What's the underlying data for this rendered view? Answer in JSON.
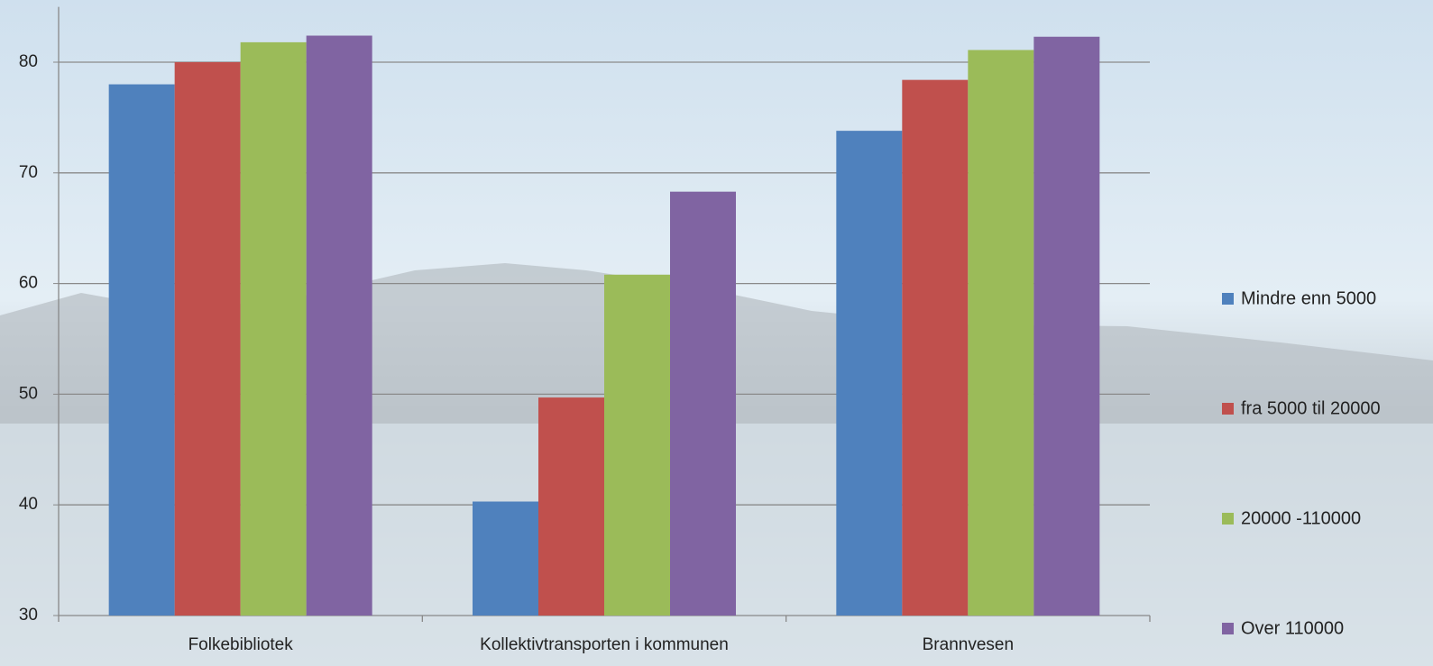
{
  "chart_data": {
    "type": "bar",
    "categories": [
      "Folkebibliotek",
      "Kollektivtransporten i kommunen",
      "Brannvesen"
    ],
    "series": [
      {
        "name": "Mindre enn 5000",
        "color": "#4f81bd",
        "values": [
          78,
          40.3,
          73.8
        ]
      },
      {
        "name": "fra 5000 til 20000",
        "color": "#c0504d",
        "values": [
          80,
          49.7,
          78.4
        ]
      },
      {
        "name": "20000 -110000",
        "color": "#9bbb59",
        "values": [
          81.8,
          60.8,
          81.1
        ]
      },
      {
        "name": "Over 110000",
        "color": "#8064a2",
        "values": [
          82.4,
          68.3,
          82.3
        ]
      }
    ],
    "ylim": [
      30,
      85
    ],
    "yticks": [
      30,
      40,
      50,
      60,
      70,
      80
    ],
    "grid": true,
    "legend": "right"
  }
}
